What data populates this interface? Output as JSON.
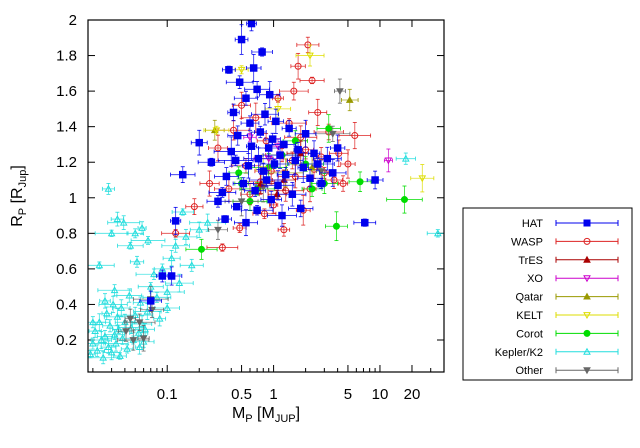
{
  "chart_data": {
    "type": "scatter",
    "title": "",
    "xlabel": {
      "main": "M",
      "sub": "P",
      "unit_open": " [M",
      "unit_sub": "JUP",
      "unit_close": "]"
    },
    "ylabel": {
      "main": "R",
      "sub": "P",
      "unit_open": " [R",
      "unit_sub": "Jup",
      "unit_close": "]"
    },
    "x_scale": "log",
    "xlim": [
      0.018,
      40
    ],
    "ylim": [
      0.02,
      2.0
    ],
    "x_ticks": [
      {
        "value": 0.1,
        "label": "0.1"
      },
      {
        "value": 0.5,
        "label": "0.5"
      },
      {
        "value": 1,
        "label": "1"
      },
      {
        "value": 5,
        "label": "5"
      },
      {
        "value": 10,
        "label": "10"
      },
      {
        "value": 20,
        "label": "20"
      }
    ],
    "y_ticks": [
      {
        "value": 0.2,
        "label": "0.2"
      },
      {
        "value": 0.4,
        "label": "0.4"
      },
      {
        "value": 0.6,
        "label": "0.6"
      },
      {
        "value": 0.8,
        "label": "0.8"
      },
      {
        "value": 1.0,
        "label": "1"
      },
      {
        "value": 1.2,
        "label": "1.2"
      },
      {
        "value": 1.4,
        "label": "1.4"
      },
      {
        "value": 1.6,
        "label": "1.6"
      },
      {
        "value": 1.8,
        "label": "1.8"
      },
      {
        "value": 2.0,
        "label": "2"
      }
    ],
    "grid": false,
    "legend_position": "right",
    "series": [
      {
        "name": "HAT",
        "color": "#0000ee",
        "marker": "square-filled",
        "points": [
          [
            0.07,
            0.42
          ],
          [
            0.09,
            0.56
          ],
          [
            0.11,
            0.56
          ],
          [
            0.12,
            0.87
          ],
          [
            0.14,
            1.13
          ],
          [
            0.2,
            1.31
          ],
          [
            0.26,
            1.2
          ],
          [
            0.3,
            0.98
          ],
          [
            0.33,
            1.03
          ],
          [
            0.36,
            1.12
          ],
          [
            0.38,
            1.72
          ],
          [
            0.4,
            1.26
          ],
          [
            0.42,
            1.48
          ],
          [
            0.44,
            1.21
          ],
          [
            0.46,
            1.35
          ],
          [
            0.48,
            1.65
          ],
          [
            0.5,
            1.89
          ],
          [
            0.52,
            1.08
          ],
          [
            0.55,
            1.56
          ],
          [
            0.58,
            1.18
          ],
          [
            0.6,
            1.42
          ],
          [
            0.62,
            1.29
          ],
          [
            0.65,
            1.73
          ],
          [
            0.67,
            1.04
          ],
          [
            0.7,
            1.61
          ],
          [
            0.72,
            1.22
          ],
          [
            0.75,
            1.37
          ],
          [
            0.78,
            1.82
          ],
          [
            0.8,
            1.15
          ],
          [
            0.83,
            1.47
          ],
          [
            0.86,
            1.1
          ],
          [
            0.9,
            1.28
          ],
          [
            0.92,
            1.58
          ],
          [
            0.95,
            0.99
          ],
          [
            0.98,
            1.33
          ],
          [
            1.02,
            1.19
          ],
          [
            1.05,
            1.43
          ],
          [
            1.1,
            1.07
          ],
          [
            1.15,
            1.24
          ],
          [
            1.2,
            0.9
          ],
          [
            1.25,
            1.3
          ],
          [
            1.3,
            1.13
          ],
          [
            1.4,
            1.39
          ],
          [
            1.5,
            1.02
          ],
          [
            1.6,
            1.21
          ],
          [
            1.7,
            1.27
          ],
          [
            1.8,
            0.94
          ],
          [
            1.9,
            1.17
          ],
          [
            2.0,
            1.36
          ],
          [
            2.2,
            1.11
          ],
          [
            2.4,
            1.25
          ],
          [
            2.6,
            1.19
          ],
          [
            2.8,
            1.08
          ],
          [
            3.2,
            1.22
          ],
          [
            3.6,
            1.14
          ],
          [
            4.0,
            1.28
          ],
          [
            0.35,
            0.88
          ],
          [
            0.45,
            0.95
          ],
          [
            0.55,
            0.86
          ],
          [
            0.7,
            0.93
          ],
          [
            7.2,
            0.86
          ],
          [
            9.0,
            1.1
          ],
          [
            0.62,
            1.98
          ]
        ]
      },
      {
        "name": "WASP",
        "color": "#dd2222",
        "marker": "circle-open",
        "points": [
          [
            0.12,
            0.8
          ],
          [
            0.18,
            0.95
          ],
          [
            0.25,
            1.08
          ],
          [
            0.3,
            1.28
          ],
          [
            0.33,
            0.72
          ],
          [
            0.38,
            1.05
          ],
          [
            0.42,
            1.38
          ],
          [
            0.48,
            0.83
          ],
          [
            0.55,
            1.18
          ],
          [
            0.6,
            1.02
          ],
          [
            0.68,
            1.45
          ],
          [
            0.75,
            1.09
          ],
          [
            0.85,
            1.32
          ],
          [
            0.95,
            1.15
          ],
          [
            1.0,
            0.96
          ],
          [
            1.1,
            1.56
          ],
          [
            1.2,
            1.24
          ],
          [
            1.3,
            1.04
          ],
          [
            1.4,
            1.42
          ],
          [
            1.5,
            1.21
          ],
          [
            1.6,
            1.12
          ],
          [
            1.7,
            1.74
          ],
          [
            1.8,
            1.34
          ],
          [
            1.9,
            0.93
          ],
          [
            2.0,
            1.27
          ],
          [
            2.1,
            1.86
          ],
          [
            2.2,
            1.05
          ],
          [
            2.4,
            1.16
          ],
          [
            2.6,
            1.48
          ],
          [
            2.8,
            1.23
          ],
          [
            3.0,
            1.14
          ],
          [
            3.3,
            1.37
          ],
          [
            3.7,
            1.1
          ],
          [
            4.1,
            1.25
          ],
          [
            4.5,
            1.08
          ],
          [
            5.0,
            1.19
          ],
          [
            5.8,
            1.35
          ],
          [
            0.82,
            0.91
          ],
          [
            1.25,
            0.82
          ],
          [
            1.55,
            1.6
          ],
          [
            2.3,
            1.66
          ],
          [
            0.5,
            1.52
          ]
        ]
      },
      {
        "name": "TrES",
        "color": "#aa0000",
        "marker": "triangle-up-filled",
        "points": [
          [
            0.76,
            1.08
          ],
          [
            1.25,
            1.1
          ],
          [
            1.08,
            1.02
          ],
          [
            1.8,
            1.25
          ]
        ]
      },
      {
        "name": "XO",
        "color": "#cc00cc",
        "marker": "triangle-down-open",
        "points": [
          [
            0.6,
            1.34
          ],
          [
            0.9,
            1.22
          ],
          [
            1.1,
            1.29
          ],
          [
            12.0,
            1.21
          ]
        ]
      },
      {
        "name": "Qatar",
        "color": "#999900",
        "marker": "triangle-up-filled",
        "points": [
          [
            0.28,
            1.38
          ],
          [
            1.3,
            1.14
          ],
          [
            2.3,
            1.17
          ],
          [
            5.2,
            1.55
          ]
        ]
      },
      {
        "name": "KELT",
        "color": "#dddd00",
        "marker": "triangle-down-open",
        "points": [
          [
            0.29,
            1.38
          ],
          [
            0.5,
            1.72
          ],
          [
            0.8,
            1.16
          ],
          [
            1.1,
            1.5
          ],
          [
            2.2,
            1.8
          ],
          [
            25.0,
            1.11
          ]
        ]
      },
      {
        "name": "Corot",
        "color": "#00dd00",
        "marker": "circle-filled",
        "points": [
          [
            0.21,
            0.71
          ],
          [
            0.47,
            1.14
          ],
          [
            0.5,
            1.08
          ],
          [
            0.6,
            0.98
          ],
          [
            0.7,
            1.05
          ],
          [
            0.9,
            1.17
          ],
          [
            1.2,
            1.24
          ],
          [
            1.6,
            1.32
          ],
          [
            2.0,
            1.19
          ],
          [
            2.3,
            1.05
          ],
          [
            3.0,
            1.08
          ],
          [
            3.3,
            1.39
          ],
          [
            3.9,
            0.84
          ],
          [
            6.5,
            1.09
          ],
          [
            17.0,
            0.99
          ]
        ]
      },
      {
        "name": "Kepler/K2",
        "color": "#22dddd",
        "marker": "triangle-up-open",
        "points": [
          [
            0.019,
            0.12
          ],
          [
            0.02,
            0.18
          ],
          [
            0.021,
            0.25
          ],
          [
            0.022,
            0.14
          ],
          [
            0.023,
            0.3
          ],
          [
            0.024,
            0.2
          ],
          [
            0.025,
            0.1
          ],
          [
            0.026,
            0.22
          ],
          [
            0.027,
            0.35
          ],
          [
            0.028,
            0.16
          ],
          [
            0.029,
            0.28
          ],
          [
            0.03,
            0.13
          ],
          [
            0.031,
            0.4
          ],
          [
            0.032,
            0.23
          ],
          [
            0.033,
            0.18
          ],
          [
            0.034,
            0.33
          ],
          [
            0.035,
            0.26
          ],
          [
            0.036,
            0.11
          ],
          [
            0.037,
            0.38
          ],
          [
            0.038,
            0.21
          ],
          [
            0.04,
            0.3
          ],
          [
            0.042,
            0.15
          ],
          [
            0.044,
            0.45
          ],
          [
            0.046,
            0.27
          ],
          [
            0.048,
            0.2
          ],
          [
            0.05,
            0.34
          ],
          [
            0.052,
            0.64
          ],
          [
            0.054,
            0.24
          ],
          [
            0.056,
            0.41
          ],
          [
            0.058,
            0.29
          ],
          [
            0.06,
            0.19
          ],
          [
            0.065,
            0.36
          ],
          [
            0.07,
            0.5
          ],
          [
            0.075,
            0.57
          ],
          [
            0.08,
            0.44
          ],
          [
            0.085,
            0.32
          ],
          [
            0.09,
            0.6
          ],
          [
            0.1,
            0.38
          ],
          [
            0.11,
            0.66
          ],
          [
            0.12,
            0.73
          ],
          [
            0.13,
            0.52
          ],
          [
            0.15,
            0.78
          ],
          [
            0.17,
            0.62
          ],
          [
            0.2,
            0.82
          ],
          [
            0.24,
            0.86
          ],
          [
            0.028,
            1.05
          ],
          [
            0.03,
            0.8
          ],
          [
            0.034,
            0.88
          ],
          [
            0.039,
            0.86
          ],
          [
            0.045,
            0.73
          ],
          [
            0.05,
            0.8
          ],
          [
            0.058,
            0.83
          ],
          [
            0.066,
            0.76
          ],
          [
            0.023,
            0.62
          ],
          [
            0.02,
            0.3
          ],
          [
            0.026,
            0.42
          ],
          [
            0.032,
            0.48
          ],
          [
            0.1,
            0.47
          ],
          [
            0.14,
            0.92
          ],
          [
            0.055,
            0.16
          ],
          [
            0.062,
            0.26
          ],
          [
            17.5,
            1.22
          ],
          [
            35.0,
            0.8
          ]
        ]
      },
      {
        "name": "Other",
        "color": "#666666",
        "marker": "triangle-down-filled",
        "points": [
          [
            0.041,
            0.25
          ],
          [
            0.048,
            0.2
          ],
          [
            0.06,
            0.21
          ],
          [
            0.072,
            0.37
          ],
          [
            0.3,
            0.82
          ],
          [
            0.5,
            0.98
          ],
          [
            0.8,
            1.06
          ],
          [
            3.6,
            1.36
          ],
          [
            4.2,
            1.6
          ],
          [
            2.8,
            1.15
          ],
          [
            0.055,
            0.3
          ],
          [
            0.045,
            0.32
          ],
          [
            0.07,
            0.43
          ]
        ]
      }
    ]
  }
}
